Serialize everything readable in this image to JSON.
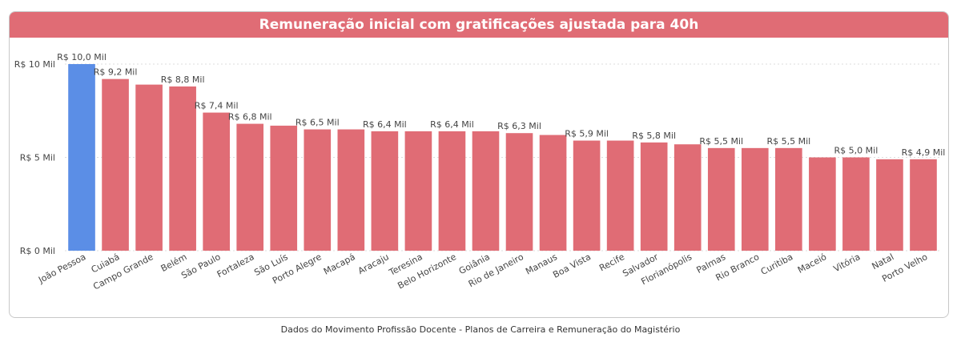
{
  "chart_data": {
    "type": "bar",
    "title": "Remuneração inicial com gratificações ajustada para 40h",
    "categories": [
      "João Pessoa",
      "Cuiabá",
      "Campo Grande",
      "Belém",
      "São Paulo",
      "Fortaleza",
      "São Luís",
      "Porto Alegre",
      "Macapá",
      "Aracaju",
      "Teresina",
      "Belo Horizonte",
      "Goiânia",
      "Rio de Janeiro",
      "Manaus",
      "Boa Vista",
      "Recife",
      "Salvador",
      "Florianópolis",
      "Palmas",
      "Rio Branco",
      "Curitiba",
      "Maceió",
      "Vitória",
      "Natal",
      "Porto Velho"
    ],
    "values": [
      10.0,
      9.2,
      8.9,
      8.8,
      7.4,
      6.8,
      6.7,
      6.5,
      6.5,
      6.4,
      6.4,
      6.4,
      6.4,
      6.3,
      6.2,
      5.9,
      5.9,
      5.8,
      5.7,
      5.5,
      5.5,
      5.5,
      5.0,
      5.0,
      4.9,
      4.9
    ],
    "data_labels": [
      "R$ 10,0 Mil",
      "R$ 9,2 Mil",
      "",
      "R$ 8,8 Mil",
      "R$ 7,4 Mil",
      "R$ 6,8 Mil",
      "",
      "R$ 6,5 Mil",
      "",
      "R$ 6,4 Mil",
      "",
      "R$ 6,4 Mil",
      "",
      "R$ 6,3 Mil",
      "",
      "R$ 5,9 Mil",
      "",
      "R$ 5,8 Mil",
      "",
      "R$ 5,5 Mil",
      "",
      "R$ 5,5 Mil",
      "",
      "R$ 5,0 Mil",
      "",
      "R$ 4,9 Mil"
    ],
    "highlight_index": 0,
    "y_ticks": [
      0,
      5,
      10
    ],
    "y_tick_labels": [
      "R$ 0 Mil",
      "R$ 5 Mil",
      "R$ 10 Mil"
    ],
    "ylim": [
      0,
      10
    ],
    "grid": true,
    "colors": {
      "bar": "#e06c75",
      "highlight": "#5b8ee6",
      "title_bg": "#e06c75",
      "grid": "#dddddd",
      "text": "#444444"
    }
  },
  "footer": "Dados do Movimento Profissão Docente - Planos de Carreira e Remuneração do Magistério"
}
